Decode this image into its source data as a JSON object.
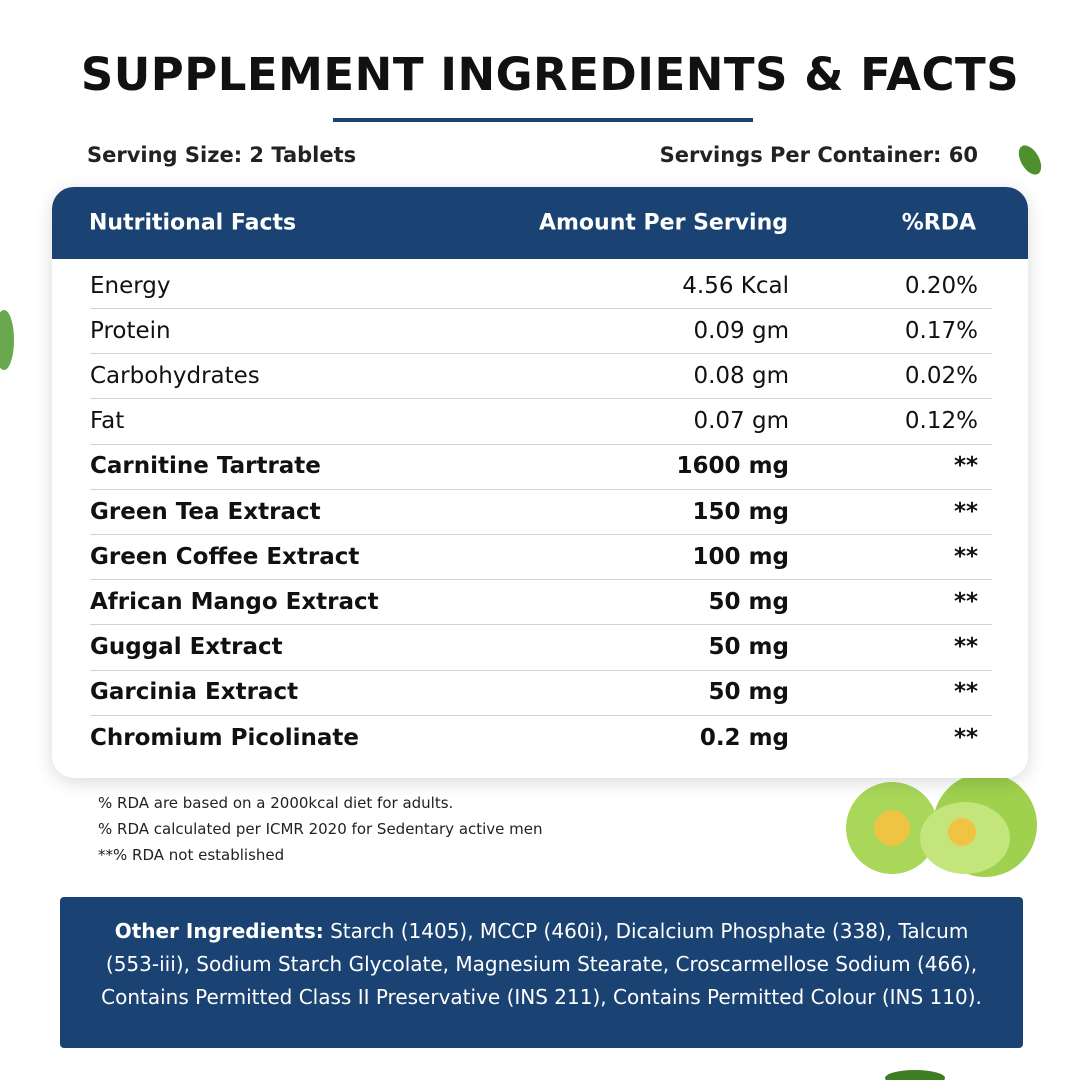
{
  "title": "SUPPLEMENT INGREDIENTS & FACTS",
  "serving_size": "Serving Size: 2 Tablets",
  "servings_per_container": "Servings Per Container: 60",
  "table": {
    "header": [
      "Nutritional Facts",
      "Amount Per Serving",
      "%RDA"
    ],
    "rows": [
      [
        "Energy",
        "4.56 Kcal",
        "0.20%"
      ],
      [
        "Protein",
        "0.09 gm",
        "0.17%"
      ],
      [
        "Carbohydrates",
        "0.08 gm",
        "0.02%"
      ],
      [
        "Fat",
        "0.07 gm",
        "0.12%"
      ],
      [
        "Carnitine Tartrate",
        "1600 mg",
        "**"
      ],
      [
        "Green Tea Extract",
        "150 mg",
        "**"
      ],
      [
        "Green Coffee Extract",
        "100 mg",
        "**"
      ],
      [
        "African Mango Extract",
        "50 mg",
        "**"
      ],
      [
        "Guggal Extract",
        "50 mg",
        "**"
      ],
      [
        "Garcinia Extract",
        "50 mg",
        "**"
      ],
      [
        "Chromium Picolinate",
        "0.2 mg",
        "**"
      ]
    ]
  },
  "notes": [
    "% RDA are based on a 2000kcal diet for adults.",
    "% RDA calculated per ICMR 2020 for Sedentary active men",
    "**% RDA not established"
  ],
  "other_ingredients": {
    "label": "Other Ingredients:",
    "text": "Starch (1405), MCCP (460i), Dicalcium Phosphate (338), Talcum (553-iii), Sodium Starch Glycolate, Magnesium Stearate, Croscarmellose Sodium (466), Contains Permitted Class II Preservative (INS 211), Contains Permitted Colour (INS 110)."
  }
}
